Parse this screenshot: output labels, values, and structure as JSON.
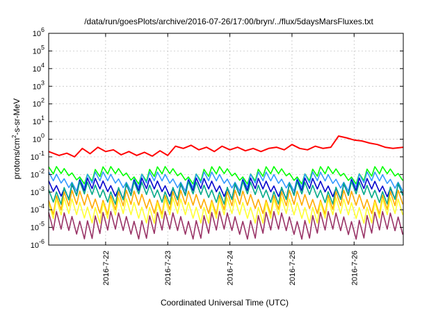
{
  "chart_data": {
    "type": "line",
    "title": "/data/run/goesPlots/archive/2016-07-26/17:00/bryn/../flux/5daysMarsFluxes.txt",
    "xlabel": "Coordinated Universal Time (UTC)",
    "ylabel": "protons/cm²-s-sr-MeV",
    "ylabel_parts": {
      "pre": "protons/cm",
      "sup": "2",
      "post": "-s-sr-MeV"
    },
    "y_scale": "log",
    "ylim": [
      1e-06,
      1000000.0
    ],
    "y_ticks": [
      {
        "exp": -6,
        "base": "10",
        "sup": "-6"
      },
      {
        "exp": -5,
        "base": "10",
        "sup": "-5"
      },
      {
        "exp": -4,
        "base": "10",
        "sup": "-4"
      },
      {
        "exp": -3,
        "base": "10",
        "sup": "-3"
      },
      {
        "exp": -2,
        "base": "10",
        "sup": "-2"
      },
      {
        "exp": -1,
        "base": "10",
        "sup": "-1"
      },
      {
        "exp": 0,
        "base": "10",
        "sup": "0"
      },
      {
        "exp": 1,
        "base": "10",
        "sup": "1"
      },
      {
        "exp": 2,
        "base": "10",
        "sup": "2"
      },
      {
        "exp": 3,
        "base": "10",
        "sup": "3"
      },
      {
        "exp": 4,
        "base": "10",
        "sup": "4"
      },
      {
        "exp": 5,
        "base": "10",
        "sup": "5"
      },
      {
        "exp": 6,
        "base": "10",
        "sup": "6"
      }
    ],
    "xlim": [
      "2016-07-21 02:00",
      "2016-07-26 19:00"
    ],
    "x_ticks": [
      {
        "x": "2016-07-22 00:00",
        "label": "2016-7-22"
      },
      {
        "x": "2016-07-23 00:00",
        "label": "2016-7-23"
      },
      {
        "x": "2016-07-24 00:00",
        "label": "2016-7-24"
      },
      {
        "x": "2016-07-25 00:00",
        "label": "2016-7-25"
      },
      {
        "x": "2016-07-26 00:00",
        "label": "2016-7-26"
      }
    ],
    "grid": true,
    "legend": "none",
    "series": [
      {
        "color": "#ff0000",
        "x": [
          "2016-07-21 02:00",
          "2016-07-21 06:00",
          "2016-07-21 09:00",
          "2016-07-21 12:00",
          "2016-07-21 15:00",
          "2016-07-21 18:00",
          "2016-07-21 21:00",
          "2016-07-22 00:00",
          "2016-07-22 03:00",
          "2016-07-22 06:00",
          "2016-07-22 09:00",
          "2016-07-22 12:00",
          "2016-07-22 15:00",
          "2016-07-22 18:00",
          "2016-07-22 21:00",
          "2016-07-23 00:00",
          "2016-07-23 03:00",
          "2016-07-23 06:00",
          "2016-07-23 09:00",
          "2016-07-23 12:00",
          "2016-07-23 15:00",
          "2016-07-23 18:00",
          "2016-07-23 21:00",
          "2016-07-24 00:00",
          "2016-07-24 03:00",
          "2016-07-24 06:00",
          "2016-07-24 09:00",
          "2016-07-24 12:00",
          "2016-07-24 15:00",
          "2016-07-24 18:00",
          "2016-07-24 21:00",
          "2016-07-25 00:00",
          "2016-07-25 03:00",
          "2016-07-25 06:00",
          "2016-07-25 09:00",
          "2016-07-25 12:00",
          "2016-07-25 15:00",
          "2016-07-25 18:00",
          "2016-07-25 21:00",
          "2016-07-26 00:00",
          "2016-07-26 03:00",
          "2016-07-26 06:00",
          "2016-07-26 09:00",
          "2016-07-26 12:00",
          "2016-07-26 15:00",
          "2016-07-26 19:00"
        ],
        "y": [
          0.2,
          0.12,
          0.16,
          0.1,
          0.3,
          0.15,
          0.35,
          0.2,
          0.25,
          0.13,
          0.2,
          0.12,
          0.18,
          0.11,
          0.22,
          0.12,
          0.4,
          0.3,
          0.45,
          0.25,
          0.35,
          0.2,
          0.4,
          0.25,
          0.35,
          0.22,
          0.3,
          0.2,
          0.3,
          0.35,
          0.25,
          0.5,
          0.3,
          0.25,
          0.4,
          0.3,
          0.35,
          1.5,
          1.2,
          0.9,
          0.8,
          0.6,
          0.5,
          0.35,
          0.3,
          0.35
        ]
      },
      {
        "color": "#00ff00",
        "base": 0.018,
        "amp": 0.4,
        "x": [],
        "y": []
      },
      {
        "color": "#3399ff",
        "base": 0.009,
        "amp": 0.5,
        "x": [],
        "y": []
      },
      {
        "color": "#0000cc",
        "base": 0.004,
        "amp": 0.6,
        "x": [],
        "y": []
      },
      {
        "color": "#00aa88",
        "base": 0.0025,
        "amp": 0.7,
        "x": [],
        "y": []
      },
      {
        "color": "#ffaa00",
        "base": 0.0008,
        "amp": 0.8,
        "x": [],
        "y": []
      },
      {
        "color": "#ffff33",
        "base": 0.0003,
        "amp": 0.9,
        "x": [],
        "y": []
      },
      {
        "color": "#993366",
        "base": 5e-05,
        "amp": 1.0,
        "x": [],
        "y": []
      }
    ]
  }
}
